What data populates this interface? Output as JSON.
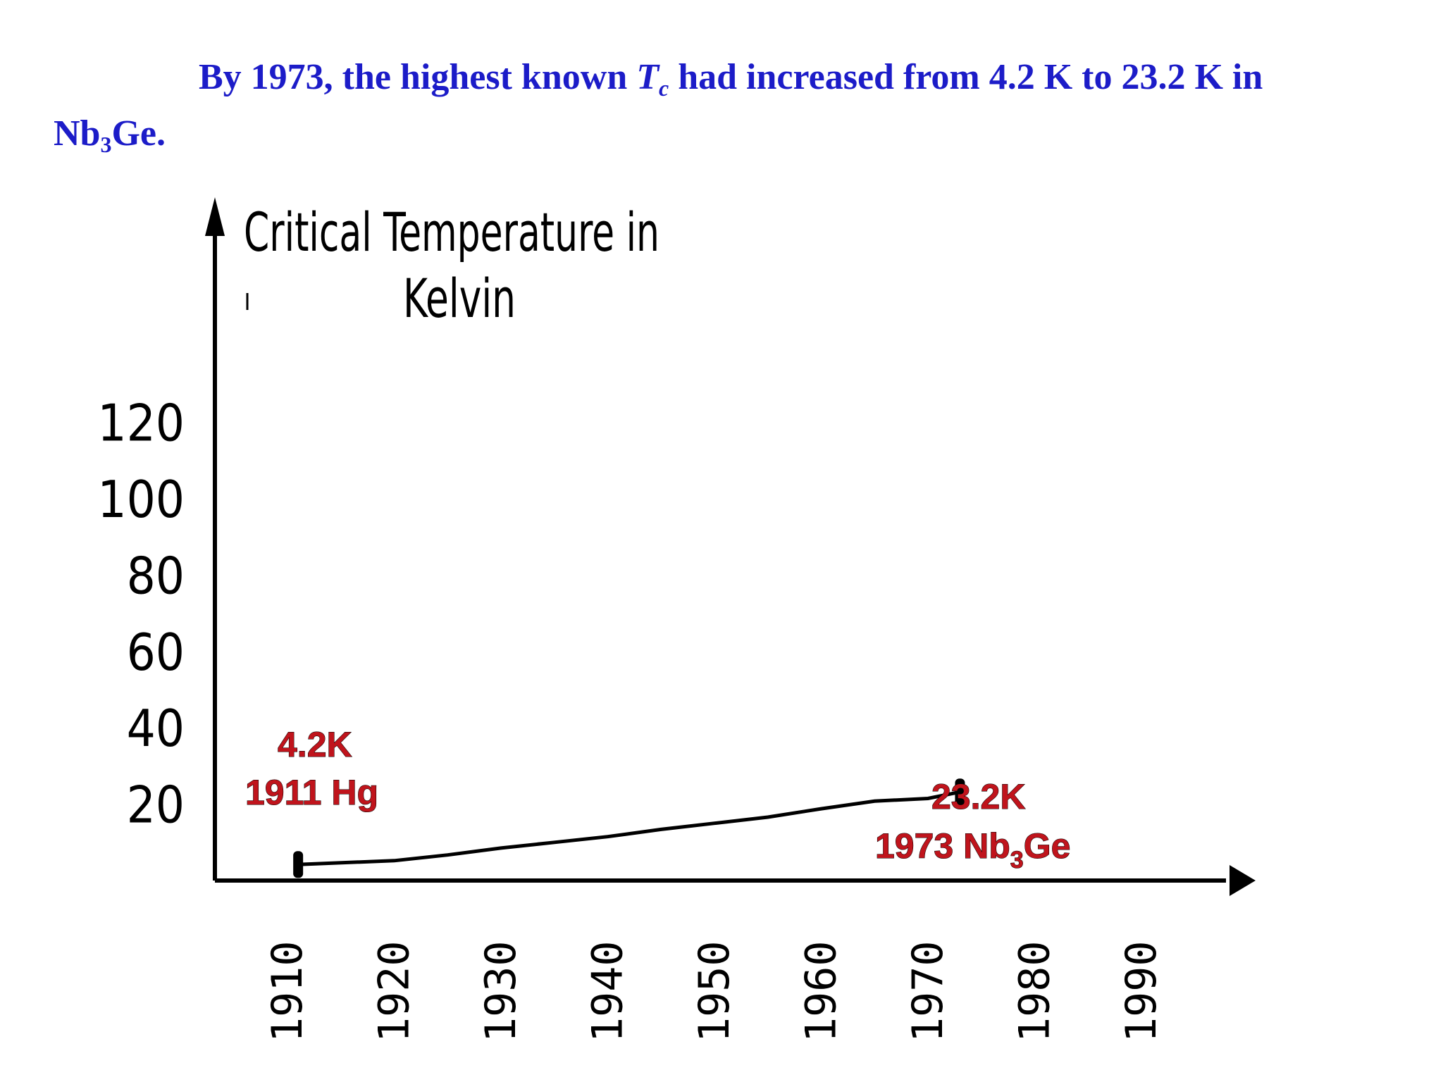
{
  "headline": {
    "part1": "By 1973, the highest known ",
    "t_symbol": "T",
    "t_subscript": "c",
    "part2": " had increased from 4.2 K to 23.2 K in ",
    "formula_main": "Nb",
    "formula_sub": "3",
    "formula_tail": "Ge."
  },
  "colors": {
    "headline": "#1c1cc8",
    "annotation": "#c0141c",
    "axis": "#000000"
  },
  "chart_data": {
    "type": "line",
    "title": "",
    "ylabel": "Critical Temperature in Kelvin",
    "ylabel_line1": "Critical Temperature in",
    "ylabel_line2": "Kelvin",
    "xlabel": "",
    "xlim": [
      1910,
      1990
    ],
    "ylim": [
      0,
      120
    ],
    "x_ticks": [
      "1910",
      "1920",
      "1930",
      "1940",
      "1950",
      "1960",
      "1970",
      "1980",
      "1990"
    ],
    "y_ticks": [
      "20",
      "40",
      "60",
      "80",
      "100",
      "120"
    ],
    "grid": false,
    "legend": "none",
    "series": [
      {
        "x": [
          1911,
          1920,
          1925,
          1930,
          1935,
          1940,
          1945,
          1950,
          1955,
          1960,
          1965,
          1970,
          1973
        ],
        "y": [
          4.2,
          5.2,
          6.7,
          8.5,
          10.0,
          11.5,
          13.4,
          15.0,
          16.6,
          18.8,
          20.8,
          21.5,
          23.2
        ]
      }
    ],
    "annotations": [
      {
        "line1": "4.2K",
        "line2": "1911 Hg",
        "x": 1911,
        "y": 4.2
      },
      {
        "line1": "23.2K",
        "line2_main": "1973 Nb",
        "line2_sub": "3",
        "line2_tail": "Ge",
        "x": 1973,
        "y": 23.2
      }
    ]
  }
}
